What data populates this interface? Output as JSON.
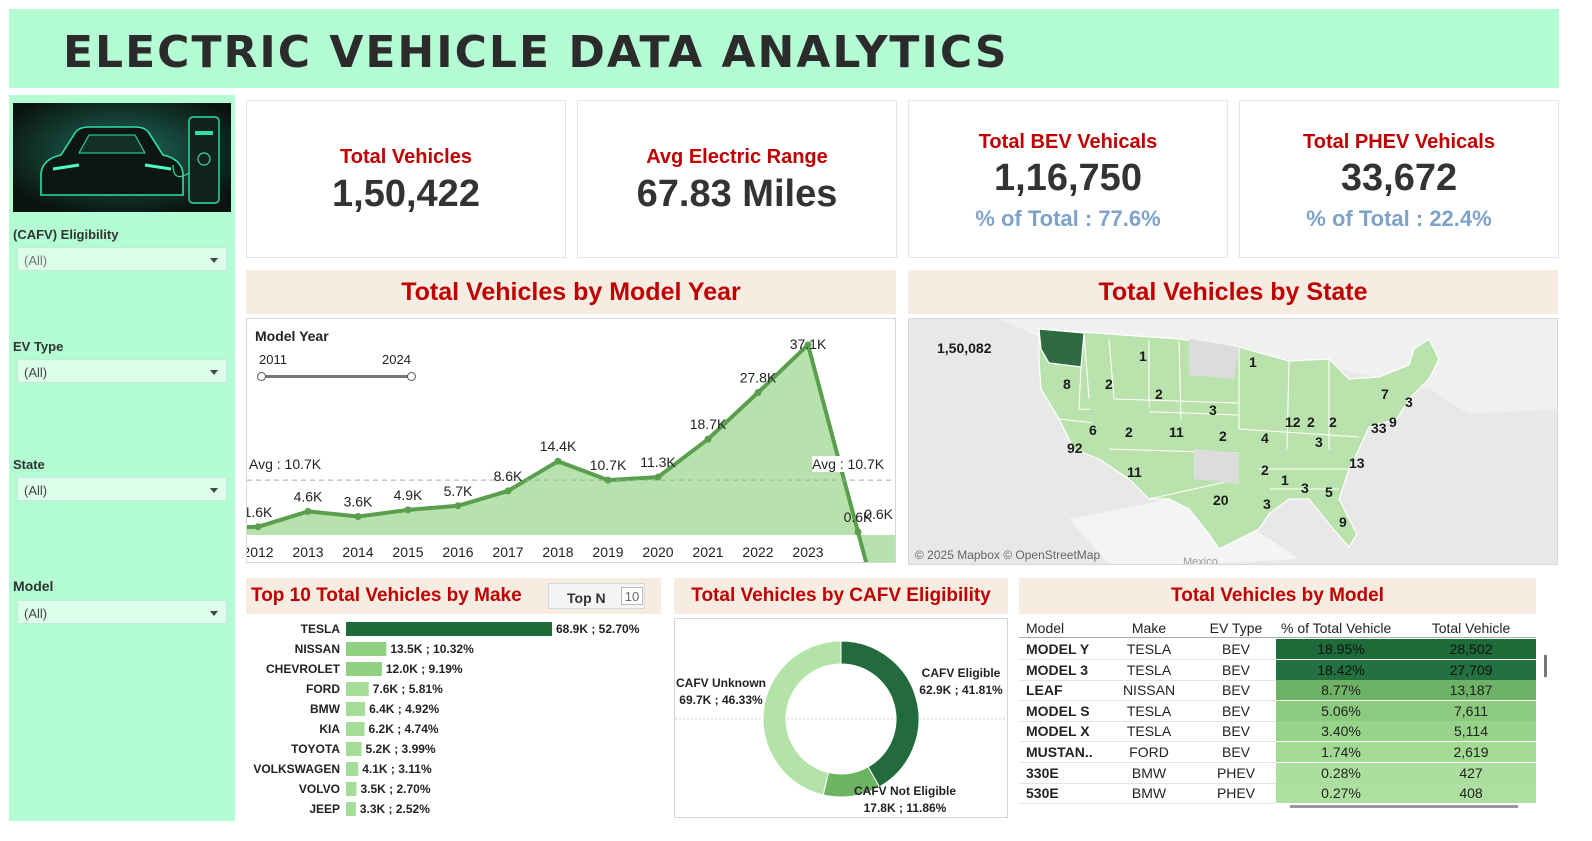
{
  "header": {
    "title": "ELECTRIC VEHICLE DATA ANALYTICS"
  },
  "filters": [
    {
      "label": "(CAFV) Eligibility",
      "value": "(All)"
    },
    {
      "label": "EV Type",
      "value": "(All)"
    },
    {
      "label": "State",
      "value": "(All)"
    },
    {
      "label": "Model",
      "value": "(All)"
    }
  ],
  "kpis": {
    "total_vehicles": {
      "label": "Total Vehicles",
      "value": "1,50,422"
    },
    "avg_range": {
      "label": "Avg Electric Range",
      "value": "67.83 Miles"
    },
    "bev": {
      "label": "Total BEV Vehicals",
      "value": "1,16,750",
      "pct": "% of Total : 77.6%"
    },
    "phev": {
      "label": "Total PHEV Vehicals",
      "value": "33,672",
      "pct": "% of Total : 22.4%"
    }
  },
  "year_panel": {
    "title": "Total Vehicles by Model Year",
    "slider_label": "Model Year",
    "slider_min": "2011",
    "slider_max": "2024",
    "avg_label_left": "Avg : 10.7K",
    "avg_label_right": "Avg : 10.7K"
  },
  "state_panel": {
    "title": "Total Vehicles by State",
    "credit": "© 2025 Mapbox © OpenStreetMap",
    "country_label": "Mexico",
    "labels": [
      "1,50,082",
      "1",
      "8",
      "2",
      "1",
      "2",
      "3",
      "7",
      "3",
      "6",
      "2",
      "11",
      "2",
      "4",
      "12",
      "2",
      "2",
      "3",
      "33",
      "9",
      "92",
      "11",
      "13",
      "2",
      "1",
      "3",
      "5",
      "20",
      "3",
      "9"
    ]
  },
  "make_panel": {
    "title": "Top 10 Total Vehicles by Make",
    "topn_label": "Top N",
    "topn_value": "10"
  },
  "cafv_panel": {
    "title": "Total Vehicles by CAFV Eligibility"
  },
  "model_panel": {
    "title": "Total Vehicles by Model",
    "columns": [
      "Model",
      "Make",
      "EV Type",
      "% of Total Vehicle",
      "Total Vehicle"
    ],
    "rows": [
      {
        "model": "MODEL Y",
        "make": "TESLA",
        "type": "BEV",
        "pct": "18.95%",
        "total": "28,502",
        "color": "#1e6b3a"
      },
      {
        "model": "MODEL 3",
        "make": "TESLA",
        "type": "BEV",
        "pct": "18.42%",
        "total": "27,709",
        "color": "#237140"
      },
      {
        "model": "LEAF",
        "make": "NISSAN",
        "type": "BEV",
        "pct": "8.77%",
        "total": "13,187",
        "color": "#6db265"
      },
      {
        "model": "MODEL S",
        "make": "TESLA",
        "type": "BEV",
        "pct": "5.06%",
        "total": "7,611",
        "color": "#8ccb7f"
      },
      {
        "model": "MODEL X",
        "make": "TESLA",
        "type": "BEV",
        "pct": "3.40%",
        "total": "5,114",
        "color": "#97d389"
      },
      {
        "model": "MUSTAN..",
        "make": "FORD",
        "type": "BEV",
        "pct": "1.74%",
        "total": "2,619",
        "color": "#a3db95"
      },
      {
        "model": "330E",
        "make": "BMW",
        "type": "PHEV",
        "pct": "0.28%",
        "total": "427",
        "color": "#acdf9f"
      },
      {
        "model": "530E",
        "make": "BMW",
        "type": "PHEV",
        "pct": "0.27%",
        "total": "408",
        "color": "#ade0a0"
      }
    ]
  },
  "chart_data": [
    {
      "type": "area",
      "title": "Total Vehicles by Model Year",
      "x": [
        "2011",
        "2012",
        "2013",
        "2014",
        "2015",
        "2016",
        "2017",
        "2018",
        "2019",
        "2020",
        "2021",
        "2022",
        "2023",
        "2024"
      ],
      "values": [
        1.3,
        1.6,
        4.6,
        3.6,
        4.9,
        5.7,
        8.6,
        14.4,
        10.7,
        11.3,
        18.7,
        27.8,
        37.1,
        0.6
      ],
      "labels": [
        "",
        "1.6K",
        "4.6K",
        "3.6K",
        "4.9K",
        "5.7K",
        "8.6K",
        "14.4K",
        "10.7K",
        "11.3K",
        "18.7K",
        "27.8K",
        "37.1K",
        "0.6K"
      ],
      "tick_labels": [
        "2012",
        "2013",
        "2014",
        "2015",
        "2016",
        "2017",
        "2018",
        "2019",
        "2020",
        "2021",
        "2022",
        "2023"
      ],
      "average": 10.7,
      "ylim": [
        0,
        40
      ],
      "color": "#5a9e4e",
      "fill": "#b7e2ad"
    },
    {
      "type": "bar",
      "title": "Top 10 Total Vehicles by Make",
      "categories": [
        "TESLA",
        "NISSAN",
        "CHEVROLET",
        "FORD",
        "BMW",
        "KIA",
        "TOYOTA",
        "VOLKSWAGEN",
        "VOLVO",
        "JEEP"
      ],
      "values": [
        68.9,
        13.5,
        12.0,
        7.6,
        6.4,
        6.2,
        5.2,
        4.1,
        3.5,
        3.3
      ],
      "labels": [
        "68.9K ; 52.70%",
        "13.5K ; 10.32%",
        "12.0K ; 9.19%",
        "7.6K ; 5.81%",
        "6.4K ; 4.92%",
        "6.2K ; 4.74%",
        "5.2K ; 3.99%",
        "4.1K ; 3.11%",
        "3.5K ; 2.70%",
        "3.3K ; 2.52%"
      ],
      "colors": [
        "#1e6b3a",
        "#8fd181",
        "#8fd181",
        "#a5dc97",
        "#a5dc97",
        "#a5dc97",
        "#a5dc97",
        "#a5dc97",
        "#a5dc97",
        "#a5dc97"
      ]
    },
    {
      "type": "pie",
      "title": "Total Vehicles by CAFV Eligibility",
      "categories": [
        "CAFV Eligible",
        "CAFV Not Eligible",
        "CAFV Unknown"
      ],
      "values": [
        41.81,
        11.86,
        46.33
      ],
      "labels": [
        "62.9K ; 41.81%",
        "17.8K ; 11.86%",
        "69.7K ; 46.33%"
      ],
      "colors": [
        "#236b3c",
        "#6cb464",
        "#b4e3a8"
      ]
    }
  ]
}
